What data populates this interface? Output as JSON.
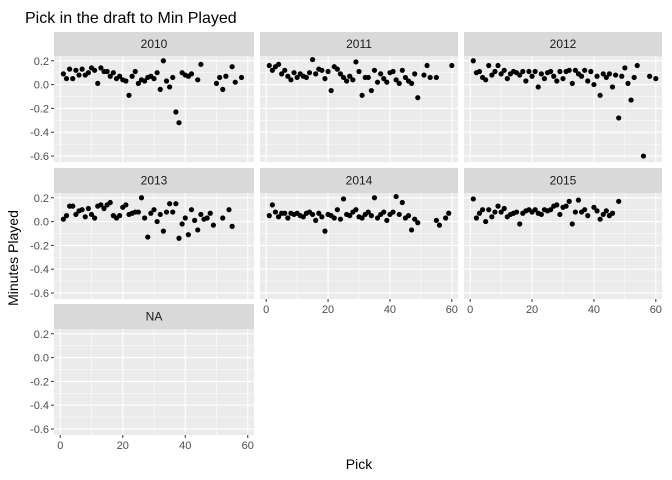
{
  "chart_data": {
    "type": "scatter",
    "title": "Pick in the draft to Min Played",
    "xlabel": "Pick",
    "ylabel": "Minutes Played",
    "x_ticks": [
      0,
      20,
      40,
      60
    ],
    "y_ticks": [
      -0.6,
      -0.4,
      -0.2,
      0.0,
      0.2
    ],
    "y_tick_labels": [
      "-0.6",
      "-0.4",
      "-0.2",
      "0.0",
      "0.2"
    ],
    "xlim": [
      -2,
      62
    ],
    "ylim": [
      -0.65,
      0.24
    ],
    "grid": true,
    "colors": {
      "panel_bg": "#ebebeb",
      "strip_bg": "#d9d9d9",
      "grid_major": "#ffffff",
      "point": "#000000"
    },
    "facets": [
      {
        "label": "2010",
        "points": [
          [
            1,
            0.09
          ],
          [
            2,
            0.05
          ],
          [
            3,
            0.13
          ],
          [
            4,
            0.05
          ],
          [
            5,
            0.12
          ],
          [
            6,
            0.08
          ],
          [
            7,
            0.13
          ],
          [
            8,
            0.08
          ],
          [
            9,
            0.1
          ],
          [
            10,
            0.14
          ],
          [
            11,
            0.12
          ],
          [
            12,
            0.01
          ],
          [
            13,
            0.14
          ],
          [
            14,
            0.11
          ],
          [
            15,
            0.11
          ],
          [
            16,
            0.07
          ],
          [
            17,
            0.1
          ],
          [
            18,
            0.05
          ],
          [
            19,
            0.07
          ],
          [
            20,
            0.04
          ],
          [
            21,
            0.03
          ],
          [
            22,
            -0.09
          ],
          [
            23,
            0.07
          ],
          [
            24,
            0.11
          ],
          [
            25,
            0.01
          ],
          [
            26,
            0.04
          ],
          [
            27,
            0.03
          ],
          [
            28,
            0.06
          ],
          [
            29,
            0.07
          ],
          [
            30,
            0.05
          ],
          [
            31,
            0.1
          ],
          [
            32,
            -0.04
          ],
          [
            33,
            0.2
          ],
          [
            34,
            0.03
          ],
          [
            35,
            -0.02
          ],
          [
            36,
            0.06
          ],
          [
            37,
            -0.23
          ],
          [
            38,
            -0.32
          ],
          [
            39,
            0.1
          ],
          [
            40,
            0.08
          ],
          [
            41,
            0.07
          ],
          [
            42,
            0.09
          ],
          [
            44,
            0.04
          ],
          [
            45,
            0.17
          ],
          [
            50,
            0.01
          ],
          [
            51,
            0.06
          ],
          [
            52,
            -0.04
          ],
          [
            53,
            0.07
          ],
          [
            55,
            0.15
          ],
          [
            56,
            0.02
          ],
          [
            58,
            0.06
          ]
        ]
      },
      {
        "label": "2011",
        "points": [
          [
            1,
            0.16
          ],
          [
            2,
            0.12
          ],
          [
            3,
            0.15
          ],
          [
            4,
            0.17
          ],
          [
            5,
            0.09
          ],
          [
            6,
            0.12
          ],
          [
            7,
            0.07
          ],
          [
            8,
            0.04
          ],
          [
            9,
            0.1
          ],
          [
            10,
            0.06
          ],
          [
            11,
            0.09
          ],
          [
            12,
            0.07
          ],
          [
            13,
            0.06
          ],
          [
            14,
            0.1
          ],
          [
            15,
            0.21
          ],
          [
            16,
            0.09
          ],
          [
            17,
            0.13
          ],
          [
            18,
            0.12
          ],
          [
            19,
            0.05
          ],
          [
            20,
            0.11
          ],
          [
            21,
            -0.05
          ],
          [
            22,
            0.15
          ],
          [
            23,
            0.13
          ],
          [
            24,
            0.09
          ],
          [
            25,
            0.06
          ],
          [
            26,
            0.03
          ],
          [
            27,
            0.07
          ],
          [
            28,
            0.04
          ],
          [
            29,
            0.19
          ],
          [
            30,
            0.11
          ],
          [
            31,
            -0.09
          ],
          [
            32,
            0.06
          ],
          [
            33,
            0.06
          ],
          [
            34,
            -0.05
          ],
          [
            35,
            0.12
          ],
          [
            36,
            0.02
          ],
          [
            37,
            0.09
          ],
          [
            38,
            0.05
          ],
          [
            39,
            0.02
          ],
          [
            40,
            0.1
          ],
          [
            41,
            0.11
          ],
          [
            42,
            0.04
          ],
          [
            43,
            0.01
          ],
          [
            44,
            0.12
          ],
          [
            45,
            0.06
          ],
          [
            46,
            0.03
          ],
          [
            47,
            0.01
          ],
          [
            48,
            0.09
          ],
          [
            49,
            -0.11
          ],
          [
            51,
            0.08
          ],
          [
            52,
            0.16
          ],
          [
            53,
            0.06
          ],
          [
            55,
            0.06
          ],
          [
            60,
            0.16
          ]
        ]
      },
      {
        "label": "2012",
        "points": [
          [
            1,
            0.2
          ],
          [
            2,
            0.1
          ],
          [
            3,
            0.11
          ],
          [
            4,
            0.06
          ],
          [
            5,
            0.04
          ],
          [
            6,
            0.16
          ],
          [
            7,
            0.08
          ],
          [
            8,
            0.11
          ],
          [
            9,
            0.16
          ],
          [
            10,
            0.09
          ],
          [
            11,
            0.12
          ],
          [
            12,
            0.05
          ],
          [
            13,
            0.09
          ],
          [
            14,
            0.11
          ],
          [
            15,
            0.1
          ],
          [
            16,
            0.08
          ],
          [
            17,
            0.11
          ],
          [
            18,
            0.03
          ],
          [
            19,
            0.11
          ],
          [
            20,
            0.07
          ],
          [
            21,
            0.11
          ],
          [
            22,
            -0.02
          ],
          [
            23,
            0.09
          ],
          [
            24,
            0.05
          ],
          [
            25,
            0.1
          ],
          [
            26,
            0.11
          ],
          [
            27,
            0.07
          ],
          [
            28,
            0.03
          ],
          [
            29,
            0.11
          ],
          [
            30,
            0.05
          ],
          [
            31,
            0.11
          ],
          [
            32,
            0.12
          ],
          [
            33,
            0.01
          ],
          [
            34,
            0.12
          ],
          [
            35,
            0.09
          ],
          [
            36,
            0.07
          ],
          [
            37,
            0.12
          ],
          [
            38,
            0.03
          ],
          [
            39,
            0.11
          ],
          [
            40,
            0.0
          ],
          [
            41,
            0.07
          ],
          [
            42,
            -0.09
          ],
          [
            43,
            0.09
          ],
          [
            44,
            0.06
          ],
          [
            45,
            0.09
          ],
          [
            46,
            -0.02
          ],
          [
            47,
            0.08
          ],
          [
            48,
            -0.28
          ],
          [
            49,
            0.07
          ],
          [
            50,
            0.14
          ],
          [
            51,
            0.01
          ],
          [
            52,
            -0.13
          ],
          [
            53,
            0.06
          ],
          [
            54,
            0.16
          ],
          [
            56,
            -0.6
          ],
          [
            58,
            0.07
          ],
          [
            60,
            0.05
          ]
        ]
      },
      {
        "label": "2013",
        "points": [
          [
            1,
            0.02
          ],
          [
            2,
            0.05
          ],
          [
            3,
            0.13
          ],
          [
            4,
            0.13
          ],
          [
            5,
            0.06
          ],
          [
            6,
            0.09
          ],
          [
            7,
            0.1
          ],
          [
            8,
            0.04
          ],
          [
            9,
            0.11
          ],
          [
            10,
            0.06
          ],
          [
            11,
            0.03
          ],
          [
            12,
            0.13
          ],
          [
            13,
            0.14
          ],
          [
            14,
            0.11
          ],
          [
            15,
            0.14
          ],
          [
            16,
            0.16
          ],
          [
            17,
            0.05
          ],
          [
            18,
            0.03
          ],
          [
            19,
            0.05
          ],
          [
            20,
            0.12
          ],
          [
            21,
            0.14
          ],
          [
            22,
            0.06
          ],
          [
            23,
            0.07
          ],
          [
            24,
            0.08
          ],
          [
            25,
            0.08
          ],
          [
            26,
            0.2
          ],
          [
            27,
            0.03
          ],
          [
            28,
            -0.13
          ],
          [
            29,
            0.07
          ],
          [
            30,
            0.1
          ],
          [
            31,
            0.0
          ],
          [
            32,
            0.06
          ],
          [
            33,
            -0.08
          ],
          [
            34,
            0.08
          ],
          [
            35,
            0.15
          ],
          [
            36,
            0.08
          ],
          [
            37,
            0.15
          ],
          [
            38,
            -0.14
          ],
          [
            39,
            -0.02
          ],
          [
            40,
            0.03
          ],
          [
            41,
            -0.11
          ],
          [
            42,
            0.1
          ],
          [
            43,
            0.01
          ],
          [
            44,
            -0.07
          ],
          [
            45,
            0.06
          ],
          [
            46,
            0.02
          ],
          [
            47,
            0.03
          ],
          [
            48,
            0.07
          ],
          [
            49,
            -0.03
          ],
          [
            52,
            0.03
          ],
          [
            54,
            0.1
          ],
          [
            55,
            -0.04
          ]
        ]
      },
      {
        "label": "2014",
        "points": [
          [
            1,
            0.05
          ],
          [
            2,
            0.14
          ],
          [
            3,
            0.08
          ],
          [
            4,
            0.04
          ],
          [
            5,
            0.07
          ],
          [
            6,
            0.07
          ],
          [
            7,
            0.03
          ],
          [
            8,
            0.07
          ],
          [
            9,
            0.06
          ],
          [
            10,
            0.07
          ],
          [
            11,
            0.05
          ],
          [
            12,
            0.04
          ],
          [
            13,
            0.07
          ],
          [
            14,
            0.08
          ],
          [
            15,
            0.06
          ],
          [
            16,
            0.01
          ],
          [
            17,
            0.07
          ],
          [
            18,
            0.04
          ],
          [
            19,
            -0.08
          ],
          [
            20,
            0.06
          ],
          [
            21,
            0.05
          ],
          [
            22,
            0.03
          ],
          [
            23,
            0.1
          ],
          [
            24,
            0.02
          ],
          [
            25,
            0.19
          ],
          [
            26,
            0.06
          ],
          [
            27,
            0.05
          ],
          [
            28,
            0.08
          ],
          [
            29,
            0.1
          ],
          [
            30,
            0.04
          ],
          [
            31,
            0.03
          ],
          [
            32,
            0.06
          ],
          [
            33,
            0.08
          ],
          [
            34,
            0.05
          ],
          [
            35,
            0.2
          ],
          [
            36,
            0.03
          ],
          [
            37,
            0.06
          ],
          [
            38,
            0.08
          ],
          [
            39,
            0.01
          ],
          [
            40,
            0.06
          ],
          [
            41,
            0.08
          ],
          [
            42,
            0.21
          ],
          [
            43,
            0.06
          ],
          [
            44,
            0.16
          ],
          [
            45,
            0.03
          ],
          [
            46,
            0.05
          ],
          [
            47,
            -0.07
          ],
          [
            48,
            0.02
          ],
          [
            49,
            -0.01
          ],
          [
            55,
            0.01
          ],
          [
            56,
            -0.03
          ],
          [
            58,
            0.03
          ],
          [
            59,
            0.07
          ]
        ]
      },
      {
        "label": "2015",
        "points": [
          [
            1,
            0.19
          ],
          [
            2,
            0.03
          ],
          [
            3,
            0.07
          ],
          [
            4,
            0.1
          ],
          [
            5,
            0.0
          ],
          [
            6,
            0.1
          ],
          [
            7,
            0.04
          ],
          [
            8,
            0.08
          ],
          [
            9,
            0.13
          ],
          [
            10,
            0.08
          ],
          [
            11,
            0.11
          ],
          [
            12,
            0.04
          ],
          [
            13,
            0.06
          ],
          [
            14,
            0.07
          ],
          [
            15,
            0.08
          ],
          [
            16,
            -0.02
          ],
          [
            17,
            0.07
          ],
          [
            18,
            0.09
          ],
          [
            19,
            0.1
          ],
          [
            20,
            0.08
          ],
          [
            21,
            0.1
          ],
          [
            22,
            0.07
          ],
          [
            23,
            0.06
          ],
          [
            24,
            0.1
          ],
          [
            25,
            0.09
          ],
          [
            26,
            0.1
          ],
          [
            27,
            0.13
          ],
          [
            28,
            0.14
          ],
          [
            29,
            0.06
          ],
          [
            30,
            0.12
          ],
          [
            31,
            0.13
          ],
          [
            32,
            0.17
          ],
          [
            33,
            -0.02
          ],
          [
            34,
            0.08
          ],
          [
            35,
            0.18
          ],
          [
            36,
            0.08
          ],
          [
            37,
            0.1
          ],
          [
            38,
            0.05
          ],
          [
            40,
            0.12
          ],
          [
            41,
            0.09
          ],
          [
            42,
            0.02
          ],
          [
            43,
            0.06
          ],
          [
            44,
            0.09
          ],
          [
            45,
            0.05
          ],
          [
            46,
            0.07
          ],
          [
            48,
            0.17
          ]
        ]
      },
      {
        "label": "NA",
        "points": []
      }
    ]
  }
}
